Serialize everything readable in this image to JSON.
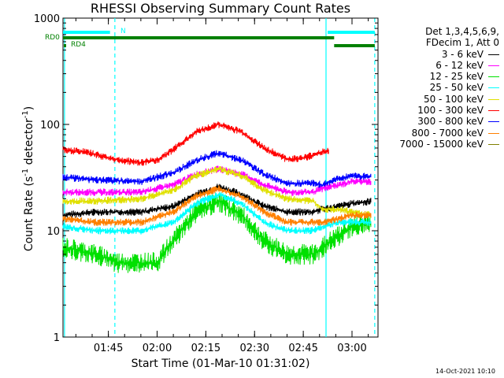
{
  "chart_data": {
    "type": "line",
    "title": "RHESSI Observing Summary Count Rates",
    "xlabel": "Start Time (01-Mar-10 01:31:02)",
    "ylabel": {
      "pre": "Count Rate (s",
      "sup1": "-1",
      "mid": " detector",
      "sup2": "-1",
      "post": ")"
    },
    "y_scale": "log",
    "ylim": [
      1,
      1000
    ],
    "xlim": [
      "01:31:02",
      "03:08:00"
    ],
    "x_ticks": [
      "01:45",
      "02:00",
      "02:15",
      "02:30",
      "02:45",
      "03:00"
    ],
    "y_ticks": [
      "1",
      "10",
      "100",
      "1000"
    ],
    "legend": {
      "placement": "right",
      "header": [
        "Det 1,3,4,5,6,9,",
        "FDecim 1, Att 0"
      ],
      "entries": [
        {
          "label": "3 - 6 keV",
          "color": "#000000"
        },
        {
          "label": "6 - 12 keV",
          "color": "#ff00ff"
        },
        {
          "label": "12 - 25 keV",
          "color": "#00e000"
        },
        {
          "label": "25 - 50 keV",
          "color": "#00ffff"
        },
        {
          "label": "50 - 100 keV",
          "color": "#e0e000"
        },
        {
          "label": "100 - 300 keV",
          "color": "#ff0000"
        },
        {
          "label": "300 - 800 keV",
          "color": "#0000ff"
        },
        {
          "label": "800 - 7000 keV",
          "color": "#ff8000"
        },
        {
          "label": "7000 - 15000 keV",
          "color": "#808000"
        }
      ]
    },
    "series": [
      {
        "name": "3 - 6 keV",
        "color": "#000000",
        "points": [
          [
            "01:31:02",
            14
          ],
          [
            "01:41",
            15
          ],
          [
            "01:55",
            15
          ],
          [
            "02:05",
            17
          ],
          [
            "02:12",
            22
          ],
          [
            "02:19",
            26
          ],
          [
            "02:26",
            22
          ],
          [
            "02:33",
            17
          ],
          [
            "02:40",
            15
          ],
          [
            "02:48",
            15
          ],
          [
            "02:51",
            16
          ],
          [
            "02:56",
            17
          ],
          [
            "03:00",
            18
          ],
          [
            "03:06",
            19
          ]
        ]
      },
      {
        "name": "6 - 12 keV",
        "color": "#ff00ff",
        "points": [
          [
            "01:31:02",
            23
          ],
          [
            "01:41",
            23
          ],
          [
            "01:55",
            23
          ],
          [
            "02:05",
            27
          ],
          [
            "02:12",
            34
          ],
          [
            "02:19",
            38
          ],
          [
            "02:26",
            34
          ],
          [
            "02:33",
            27
          ],
          [
            "02:40",
            23
          ],
          [
            "02:48",
            23
          ],
          [
            "02:51",
            25
          ],
          [
            "02:56",
            27
          ],
          [
            "03:00",
            29
          ],
          [
            "03:06",
            29
          ]
        ]
      },
      {
        "name": "12 - 25 keV",
        "color": "#00e000",
        "points": [
          [
            "01:31:02",
            7
          ],
          [
            "01:41",
            6
          ],
          [
            "01:48",
            5
          ],
          [
            "01:55",
            5
          ],
          [
            "02:00",
            5
          ],
          [
            "02:05",
            8
          ],
          [
            "02:12",
            15
          ],
          [
            "02:19",
            19
          ],
          [
            "02:26",
            14
          ],
          [
            "02:33",
            8
          ],
          [
            "02:40",
            6
          ],
          [
            "02:48",
            6
          ],
          [
            "02:51",
            7
          ],
          [
            "02:56",
            9
          ],
          [
            "03:00",
            11
          ],
          [
            "03:06",
            12
          ]
        ]
      },
      {
        "name": "25 - 50 keV",
        "color": "#00ffff",
        "points": [
          [
            "01:31:02",
            11
          ],
          [
            "01:41",
            10
          ],
          [
            "01:55",
            10
          ],
          [
            "02:05",
            12
          ],
          [
            "02:12",
            18
          ],
          [
            "02:19",
            22
          ],
          [
            "02:26",
            18
          ],
          [
            "02:33",
            12
          ],
          [
            "02:40",
            10
          ],
          [
            "02:48",
            10
          ],
          [
            "02:51",
            11
          ],
          [
            "02:56",
            12
          ],
          [
            "03:00",
            12
          ],
          [
            "03:06",
            12
          ]
        ]
      },
      {
        "name": "50 - 100 keV",
        "color": "#e0e000",
        "points": [
          [
            "01:31:02",
            19
          ],
          [
            "01:41",
            19
          ],
          [
            "01:55",
            20
          ],
          [
            "02:05",
            24
          ],
          [
            "02:12",
            33
          ],
          [
            "02:19",
            38
          ],
          [
            "02:26",
            33
          ],
          [
            "02:33",
            24
          ],
          [
            "02:40",
            20
          ],
          [
            "02:48",
            19
          ],
          [
            "02:51",
            16
          ],
          [
            "02:56",
            16
          ],
          [
            "03:00",
            15
          ],
          [
            "03:06",
            14
          ]
        ]
      },
      {
        "name": "100 - 300 keV",
        "color": "#ff0000",
        "points": [
          [
            "01:31:02",
            58
          ],
          [
            "01:38",
            55
          ],
          [
            "01:48",
            46
          ],
          [
            "01:55",
            44
          ],
          [
            "02:00",
            46
          ],
          [
            "02:05",
            58
          ],
          [
            "02:12",
            85
          ],
          [
            "02:19",
            100
          ],
          [
            "02:26",
            85
          ],
          [
            "02:33",
            60
          ],
          [
            "02:40",
            47
          ],
          [
            "02:45",
            48
          ],
          [
            "02:50",
            54
          ],
          [
            "02:53",
            57
          ]
        ]
      },
      {
        "name": "300 - 800 keV",
        "color": "#0000ff",
        "points": [
          [
            "01:31:02",
            32
          ],
          [
            "01:41",
            30
          ],
          [
            "01:55",
            29
          ],
          [
            "02:05",
            35
          ],
          [
            "02:12",
            46
          ],
          [
            "02:19",
            54
          ],
          [
            "02:26",
            46
          ],
          [
            "02:33",
            34
          ],
          [
            "02:40",
            28
          ],
          [
            "02:48",
            28
          ],
          [
            "02:51",
            27
          ],
          [
            "02:56",
            31
          ],
          [
            "03:00",
            33
          ],
          [
            "03:06",
            32
          ]
        ]
      },
      {
        "name": "800 - 7000 keV",
        "color": "#ff8000",
        "points": [
          [
            "01:31:02",
            13
          ],
          [
            "01:41",
            12
          ],
          [
            "01:55",
            12
          ],
          [
            "02:05",
            15
          ],
          [
            "02:12",
            21
          ],
          [
            "02:19",
            25
          ],
          [
            "02:26",
            21
          ],
          [
            "02:33",
            15
          ],
          [
            "02:40",
            12
          ],
          [
            "02:48",
            12
          ],
          [
            "02:51",
            12
          ],
          [
            "02:56",
            13
          ],
          [
            "03:00",
            14
          ],
          [
            "03:06",
            14
          ]
        ]
      }
    ],
    "flags": [
      {
        "label": "N",
        "color": "#00ffff",
        "segments": [
          [
            "01:31:02",
            "01:45:30"
          ],
          [
            "02:52:30",
            "03:07:00"
          ]
        ]
      },
      {
        "label": "RD0",
        "color": "#008000",
        "segments": [
          [
            "01:31:02",
            "02:54:30"
          ]
        ]
      },
      {
        "label": "RD4",
        "color": "#008000",
        "segments": [
          [
            "02:54:30",
            "03:07:00"
          ]
        ]
      }
    ],
    "markers": {
      "solid": [
        "01:31:30",
        "02:52:00"
      ],
      "dashed": [
        "01:47:00",
        "03:07:00"
      ],
      "color": "#00ffff"
    }
  },
  "timestamp": "14-Oct-2021 10:10"
}
